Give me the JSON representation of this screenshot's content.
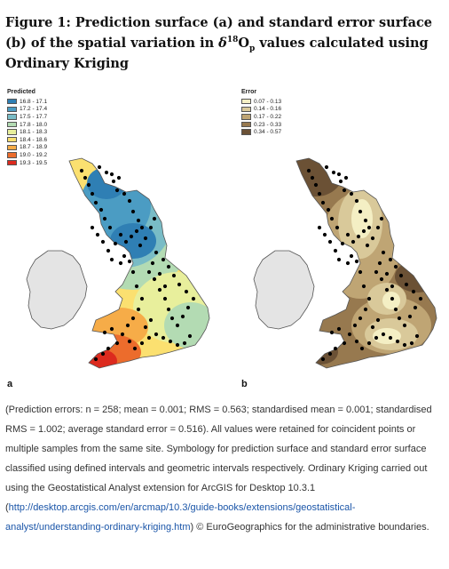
{
  "figure": {
    "title_prefix": "Figure 1: Prediction surface (a) and standard error surface (b) of the spatial variation in ",
    "title_delta": "δ",
    "title_sup": "18",
    "title_O": "O",
    "title_sub": "p",
    "title_suffix": " values calculated using Ordinary Kriging"
  },
  "map_a": {
    "panel_label": "a",
    "legend_title": "Predicted",
    "legend": [
      {
        "label": "16.8 - 17.1",
        "color": "#2f7fb4"
      },
      {
        "label": "17.2 - 17.4",
        "color": "#4b9cc3"
      },
      {
        "label": "17.5 - 17.7",
        "color": "#79bcc6"
      },
      {
        "label": "17.8 - 18.0",
        "color": "#b3dbb3"
      },
      {
        "label": "18.1 - 18.3",
        "color": "#e8ef9c"
      },
      {
        "label": "18.4 - 18.6",
        "color": "#fbe070"
      },
      {
        "label": "18.7 - 18.9",
        "color": "#f6ac48"
      },
      {
        "label": "19.0 - 19.2",
        "color": "#ec6c2c"
      },
      {
        "label": "19.3 - 19.5",
        "color": "#dc2a1e"
      }
    ]
  },
  "map_b": {
    "panel_label": "b",
    "legend_title": "Error",
    "legend": [
      {
        "label": "0.07 - 0.13",
        "color": "#f4efc4"
      },
      {
        "label": "0.14 - 0.16",
        "color": "#d9c99a"
      },
      {
        "label": "0.17 - 0.22",
        "color": "#bfa574"
      },
      {
        "label": "0.23 - 0.33",
        "color": "#97794f"
      },
      {
        "label": "0.34 - 0.57",
        "color": "#6b5135"
      }
    ]
  },
  "caption": {
    "text_before_link": "(Prediction errors: n = 258; mean = 0.001; RMS = 0.563; standardised mean = 0.001; standardised RMS = 1.002; average standard error = 0.516). All values were retained for coincident points or multiple samples from the same site. Symbology for prediction surface and standard error surface classified using defined intervals and geometric intervals respectively. Ordinary Kriging carried out using the Geostatistical Analyst extension for ArcGIS for Desktop 10.3.1 (",
    "link_text": "http://desktop.arcgis.com/en/arcmap/10.3/guide-books/extensions/geostatistical-analyst/understanding-ordinary-kriging.htm",
    "text_after_link": ") © EuroGeographics for the administrative boundaries."
  },
  "colors": {
    "ireland_fill": "#e4e4e4",
    "outline": "#555555",
    "sample_point": "#000000"
  }
}
